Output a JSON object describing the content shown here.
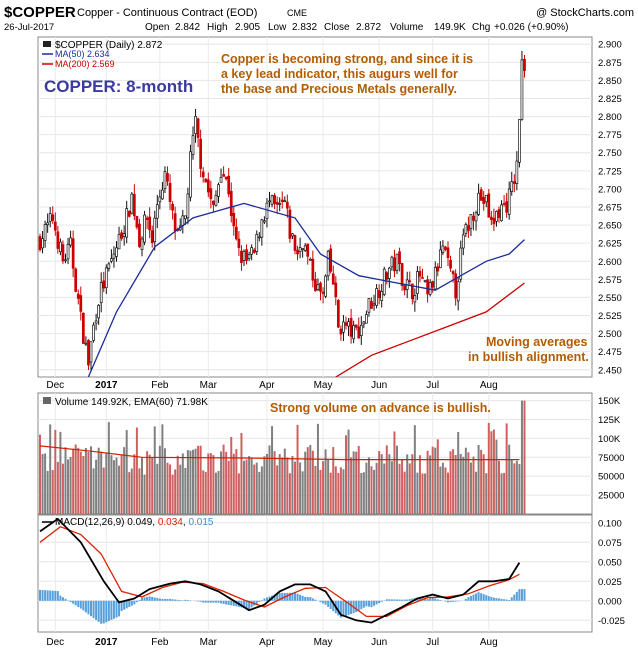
{
  "header": {
    "symbol": "$COPPER",
    "description": "Copper - Continuous Contract (EOD)",
    "exchange": "CME",
    "copyright": "@ StockCharts.com",
    "date": "26-Jul-2017",
    "open_label": "Open",
    "open": "2.842",
    "high_label": "High",
    "high": "2.905",
    "low_label": "Low",
    "low": "2.832",
    "close_label": "Close",
    "close": "2.872",
    "volume_label": "Volume",
    "volume": "149.9K",
    "chg_label": "Chg",
    "chg": "+0.026 (+0.90%)"
  },
  "colors": {
    "up": "#111111",
    "down": "#cc0000",
    "ma50": "#1a2b9a",
    "ma200": "#cc0000",
    "macd": "#000000",
    "signal": "#dd2200",
    "hist": "#3a8fd6",
    "annotation": "#b35c00",
    "label_blue": "#3a3aa0",
    "vol_up": "#808080",
    "vol_down": "#d06060",
    "vol_ema": "#cc2200"
  },
  "chart_data": [
    {
      "type": "candlestick",
      "title": "$COPPER (Daily) 2.872",
      "label": "COPPER: 8-month",
      "ylim": [
        2.44,
        2.91
      ],
      "yticks": [
        "2.450",
        "2.475",
        "2.500",
        "2.525",
        "2.550",
        "2.575",
        "2.600",
        "2.625",
        "2.650",
        "2.675",
        "2.700",
        "2.725",
        "2.750",
        "2.775",
        "2.800",
        "2.825",
        "2.850",
        "2.875",
        "2.900"
      ],
      "xticks": [
        "Dec",
        "2017",
        "Feb",
        "Mar",
        "Apr",
        "May",
        "Jun",
        "Jul",
        "Aug"
      ],
      "legend": [
        "$COPPER (Daily) 2.872",
        "MA(50) 2.634",
        "MA(200) 2.569"
      ],
      "series": [
        {
          "name": "$COPPER (Daily)",
          "anchors": [
            [
              0,
              2.63
            ],
            [
              5,
              2.66
            ],
            [
              9,
              2.6
            ],
            [
              12,
              2.62
            ],
            [
              14,
              2.57
            ],
            [
              16,
              2.52
            ],
            [
              19,
              2.46
            ],
            [
              21,
              2.51
            ],
            [
              23,
              2.55
            ],
            [
              25,
              2.57
            ],
            [
              28,
              2.6
            ],
            [
              31,
              2.63
            ],
            [
              34,
              2.66
            ],
            [
              36,
              2.69
            ],
            [
              39,
              2.63
            ],
            [
              42,
              2.66
            ],
            [
              44,
              2.63
            ],
            [
              46,
              2.68
            ],
            [
              49,
              2.72
            ],
            [
              52,
              2.66
            ],
            [
              54,
              2.63
            ],
            [
              57,
              2.66
            ],
            [
              59,
              2.74
            ],
            [
              61,
              2.79
            ],
            [
              63,
              2.74
            ],
            [
              65,
              2.71
            ],
            [
              68,
              2.67
            ],
            [
              71,
              2.73
            ],
            [
              74,
              2.7
            ],
            [
              76,
              2.64
            ],
            [
              78,
              2.61
            ],
            [
              81,
              2.6
            ],
            [
              84,
              2.61
            ],
            [
              87,
              2.66
            ],
            [
              90,
              2.68
            ],
            [
              93,
              2.67
            ],
            [
              96,
              2.68
            ],
            [
              98,
              2.64
            ],
            [
              101,
              2.61
            ],
            [
              103,
              2.63
            ],
            [
              106,
              2.59
            ],
            [
              109,
              2.56
            ],
            [
              111,
              2.55
            ],
            [
              113,
              2.6
            ],
            [
              115,
              2.57
            ],
            [
              117,
              2.51
            ],
            [
              120,
              2.51
            ],
            [
              123,
              2.5
            ],
            [
              126,
              2.51
            ],
            [
              129,
              2.54
            ],
            [
              131,
              2.55
            ],
            [
              134,
              2.57
            ],
            [
              137,
              2.59
            ],
            [
              140,
              2.6
            ],
            [
              143,
              2.57
            ],
            [
              146,
              2.56
            ],
            [
              149,
              2.58
            ],
            [
              152,
              2.55
            ],
            [
              155,
              2.58
            ],
            [
              158,
              2.62
            ],
            [
              161,
              2.58
            ],
            [
              163,
              2.56
            ],
            [
              166,
              2.63
            ],
            [
              169,
              2.66
            ],
            [
              172,
              2.69
            ],
            [
              175,
              2.68
            ],
            [
              177,
              2.65
            ],
            [
              180,
              2.67
            ],
            [
              183,
              2.68
            ],
            [
              185,
              2.7
            ],
            [
              187,
              2.73
            ],
            [
              189,
              2.87
            ],
            [
              190,
              2.87
            ]
          ]
        },
        {
          "name": "MA(50)",
          "points": [
            [
              19,
              2.44
            ],
            [
              30,
              2.53
            ],
            [
              45,
              2.62
            ],
            [
              60,
              2.66
            ],
            [
              80,
              2.68
            ],
            [
              100,
              2.66
            ],
            [
              110,
              2.61
            ],
            [
              125,
              2.58
            ],
            [
              140,
              2.57
            ],
            [
              155,
              2.56
            ],
            [
              165,
              2.58
            ],
            [
              175,
              2.6
            ],
            [
              184,
              2.61
            ],
            [
              190,
              2.63
            ]
          ]
        },
        {
          "name": "MA(200)",
          "points": [
            [
              116,
              2.44
            ],
            [
              130,
              2.47
            ],
            [
              145,
              2.49
            ],
            [
              160,
              2.51
            ],
            [
              175,
              2.53
            ],
            [
              190,
              2.57
            ]
          ]
        }
      ]
    },
    {
      "type": "bar",
      "title": "Volume 149.92K, EMA(60) 71.98K",
      "ylim": [
        0,
        160
      ],
      "yticks": [
        "25000",
        "50000",
        "75000",
        "100K",
        "125K",
        "150K"
      ],
      "series": [
        {
          "name": "Volume",
          "last": 149.9
        },
        {
          "name": "EMA(60)",
          "points": [
            [
              0,
              90
            ],
            [
              20,
              83
            ],
            [
              40,
              75
            ],
            [
              80,
              74
            ],
            [
              120,
              72
            ],
            [
              160,
              72
            ],
            [
              188,
              72
            ]
          ]
        }
      ]
    },
    {
      "type": "line",
      "title": "MACD(12,26,9) 0.049, 0.034, 0.015",
      "ylim": [
        -0.04,
        0.11
      ],
      "yticks": [
        "-0.025",
        "0.000",
        "0.025",
        "0.050",
        "0.075",
        "0.100"
      ],
      "series": [
        {
          "name": "MACD(12,26,9)",
          "last": 0.049,
          "points": [
            [
              0,
              0.089
            ],
            [
              7,
              0.105
            ],
            [
              16,
              0.075
            ],
            [
              25,
              0.025
            ],
            [
              31,
              -0.002
            ],
            [
              37,
              0.003
            ],
            [
              43,
              0.015
            ],
            [
              51,
              0.022
            ],
            [
              57,
              0.025
            ],
            [
              63,
              0.021
            ],
            [
              70,
              0.012
            ],
            [
              76,
              0.0
            ],
            [
              82,
              -0.012
            ],
            [
              88,
              -0.005
            ],
            [
              94,
              0.012
            ],
            [
              100,
              0.021
            ],
            [
              106,
              0.021
            ],
            [
              112,
              0.012
            ],
            [
              118,
              -0.018
            ],
            [
              124,
              -0.025
            ],
            [
              130,
              -0.028
            ],
            [
              136,
              -0.018
            ],
            [
              142,
              -0.008
            ],
            [
              148,
              0.003
            ],
            [
              154,
              0.008
            ],
            [
              160,
              0.003
            ],
            [
              166,
              0.008
            ],
            [
              172,
              0.025
            ],
            [
              178,
              0.025
            ],
            [
              184,
              0.028
            ],
            [
              188,
              0.049
            ]
          ]
        },
        {
          "name": "Signal",
          "last": 0.034,
          "points": [
            [
              0,
              0.075
            ],
            [
              8,
              0.095
            ],
            [
              16,
              0.085
            ],
            [
              24,
              0.06
            ],
            [
              32,
              0.012
            ],
            [
              40,
              0.005
            ],
            [
              48,
              0.017
            ],
            [
              56,
              0.024
            ],
            [
              64,
              0.022
            ],
            [
              72,
              0.012
            ],
            [
              80,
              0.001
            ],
            [
              88,
              -0.008
            ],
            [
              96,
              0.005
            ],
            [
              104,
              0.016
            ],
            [
              112,
              0.017
            ],
            [
              120,
              -0.001
            ],
            [
              128,
              -0.02
            ],
            [
              136,
              -0.02
            ],
            [
              144,
              -0.006
            ],
            [
              152,
              0.004
            ],
            [
              160,
              0.005
            ],
            [
              168,
              0.009
            ],
            [
              176,
              0.019
            ],
            [
              184,
              0.027
            ],
            [
              188,
              0.034
            ]
          ]
        },
        {
          "name": "Histogram",
          "last": 0.015
        }
      ]
    }
  ],
  "annotations": {
    "top": "Copper is becoming strong, and since it is a key lead indicator, this augurs well for the base and Precious Metals generally.",
    "ma_line1": "Moving averages",
    "ma_line2": "in bullish alignment.",
    "volume": "Strong volume on advance is bullish."
  }
}
